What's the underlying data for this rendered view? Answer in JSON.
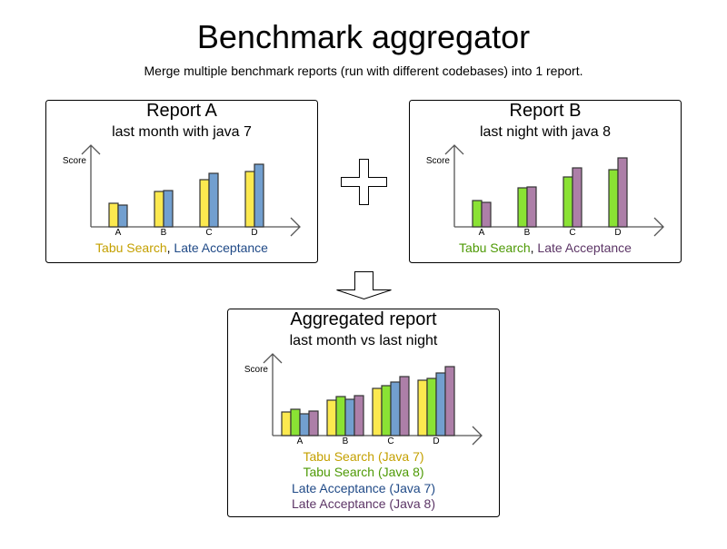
{
  "title": "Benchmark aggregator",
  "subtitle": "Merge multiple benchmark reports (run with different codebases) into 1 report.",
  "colors": {
    "tabu_java7_fill": "#fce94f",
    "tabu_java7_text": "#c4a000",
    "tabu_java8_fill": "#8ae234",
    "tabu_java8_text": "#4e9a06",
    "late_java7_fill": "#729fcf",
    "late_java7_text": "#204a87",
    "late_java8_fill": "#ad7fa8",
    "late_java8_text": "#5c3566"
  },
  "icons": {
    "merge": "plus-icon",
    "result": "down-arrow-icon"
  },
  "reports": [
    {
      "title": "Report A",
      "subtitle": "last month with java 7",
      "ylabel": "Score",
      "categories": [
        "A",
        "B",
        "C",
        "D"
      ],
      "legend": [
        "Tabu Search",
        ", ",
        "Late Acceptance"
      ],
      "series": [
        {
          "name": "Tabu Search",
          "color": "#fce94f",
          "values": [
            26,
            39,
            52,
            61
          ]
        },
        {
          "name": "Late Acceptance",
          "color": "#729fcf",
          "values": [
            24,
            40,
            59,
            69
          ]
        }
      ]
    },
    {
      "title": "Report B",
      "subtitle": "last night with java 8",
      "ylabel": "Score",
      "categories": [
        "A",
        "B",
        "C",
        "D"
      ],
      "legend": [
        "Tabu Search",
        ", ",
        "Late Acceptance"
      ],
      "series": [
        {
          "name": "Tabu Search",
          "color": "#8ae234",
          "values": [
            29,
            43,
            55,
            63
          ]
        },
        {
          "name": "Late Acceptance",
          "color": "#ad7fa8",
          "values": [
            27,
            44,
            65,
            76
          ]
        }
      ]
    },
    {
      "title": "Aggregated report",
      "subtitle": "last month vs last night",
      "ylabel": "Score",
      "categories": [
        "A",
        "B",
        "C",
        "D"
      ],
      "legend": [
        "Tabu Search (Java 7)",
        "Tabu Search (Java 8)",
        "Late Acceptance (Java 7)",
        "Late Acceptance (Java 8)"
      ],
      "series": [
        {
          "name": "Tabu Search (Java 7)",
          "color": "#fce94f",
          "values": [
            26,
            39,
            52,
            61
          ]
        },
        {
          "name": "Tabu Search (Java 8)",
          "color": "#8ae234",
          "values": [
            29,
            43,
            55,
            63
          ]
        },
        {
          "name": "Late Acceptance (Java 7)",
          "color": "#729fcf",
          "values": [
            24,
            40,
            59,
            69
          ]
        },
        {
          "name": "Late Acceptance (Java 8)",
          "color": "#ad7fa8",
          "values": [
            27,
            44,
            65,
            76
          ]
        }
      ]
    }
  ]
}
